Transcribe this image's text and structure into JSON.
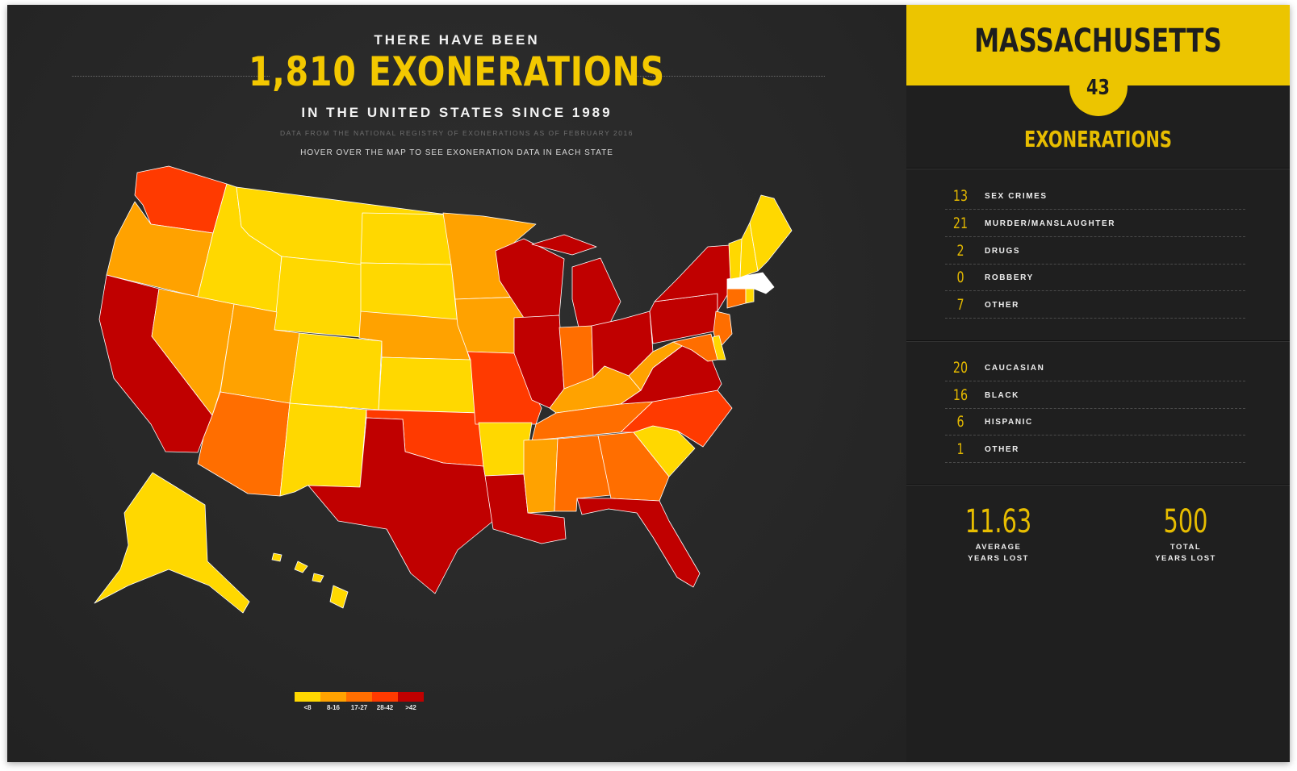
{
  "header": {
    "pre": "THERE HAVE BEEN",
    "big": "1,810 EXONERATIONS",
    "sub": "IN THE UNITED STATES SINCE 1989",
    "data_note": "DATA FROM THE NATIONAL REGISTRY OF EXONERATIONS AS OF FEBRUARY 2016",
    "hover_note": "HOVER OVER THE MAP TO SEE EXONERATION DATA IN EACH STATE"
  },
  "colors": {
    "lt8": "#ffd800",
    "c8_16": "#ffa200",
    "c17_27": "#ff6e00",
    "c28_42": "#ff3a00",
    "gt42": "#c00000",
    "selected": "#ffffff",
    "accent": "#ecc500"
  },
  "legend": {
    "items": [
      {
        "label": "<8",
        "color": "#ffd800"
      },
      {
        "label": "8-16",
        "color": "#ffa200"
      },
      {
        "label": "17-27",
        "color": "#ff6e00"
      },
      {
        "label": "28-42",
        "color": "#ff3a00"
      },
      {
        "label": ">42",
        "color": "#c00000"
      }
    ]
  },
  "map": {
    "selected_state": "MA",
    "state_bins": {
      "WA": "c28_42",
      "OR": "c8_16",
      "CA": "gt42",
      "NV": "c8_16",
      "ID": "lt8",
      "MT": "lt8",
      "WY": "lt8",
      "UT": "c8_16",
      "AZ": "c17_27",
      "CO": "lt8",
      "NM": "lt8",
      "ND": "lt8",
      "SD": "lt8",
      "NE": "c8_16",
      "KS": "lt8",
      "OK": "c28_42",
      "TX": "gt42",
      "MN": "c8_16",
      "IA": "c8_16",
      "MO": "c28_42",
      "AR": "lt8",
      "LA": "gt42",
      "WI": "gt42",
      "IL": "gt42",
      "MI": "gt42",
      "IN": "c17_27",
      "OH": "gt42",
      "KY": "c8_16",
      "TN": "c17_27",
      "MS": "c8_16",
      "AL": "c17_27",
      "GA": "c17_27",
      "FL": "gt42",
      "SC": "lt8",
      "NC": "c28_42",
      "VA": "gt42",
      "WV": "c8_16",
      "PA": "gt42",
      "NY": "gt42",
      "NJ": "c17_27",
      "DE": "lt8",
      "MD": "c17_27",
      "CT": "c17_27",
      "RI": "lt8",
      "MA": "selected",
      "VT": "lt8",
      "NH": "lt8",
      "ME": "lt8",
      "AK": "lt8",
      "HI": "lt8"
    }
  },
  "panel": {
    "state": "MASSACHUSETTS",
    "total": "43",
    "total_label": "EXONERATIONS",
    "crimes": [
      {
        "n": "13",
        "label": "SEX CRIMES"
      },
      {
        "n": "21",
        "label": "MURDER/MANSLAUGHTER"
      },
      {
        "n": "2",
        "label": "DRUGS"
      },
      {
        "n": "0",
        "label": "ROBBERY"
      },
      {
        "n": "7",
        "label": "OTHER"
      }
    ],
    "races": [
      {
        "n": "20",
        "label": "CAUCASIAN"
      },
      {
        "n": "16",
        "label": "BLACK"
      },
      {
        "n": "6",
        "label": "HISPANIC"
      },
      {
        "n": "1",
        "label": "OTHER"
      }
    ],
    "avg_years": "11.63",
    "avg_label_1": "AVERAGE",
    "avg_label_2": "YEARS LOST",
    "total_years": "500",
    "total_years_label_1": "TOTAL",
    "total_years_label_2": "YEARS LOST"
  }
}
